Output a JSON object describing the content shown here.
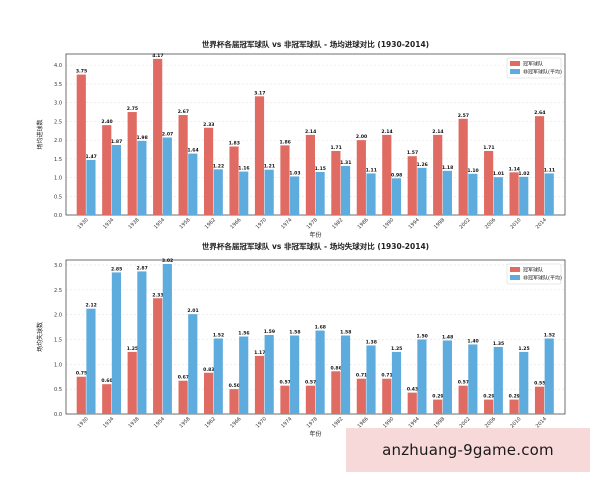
{
  "colors": {
    "champion": "#e06b62",
    "nonchampion": "#5dacdd"
  },
  "watermark": "anzhuang-9game.com",
  "chart_data": [
    {
      "type": "bar",
      "title": "世界杯各届冠军球队 vs 非冠军球队 - 场均进球对比 (1930-2014)",
      "xlabel": "年份",
      "ylabel": "场均进球数",
      "ylim": [
        0,
        4.3
      ],
      "yticks": [
        "0.0",
        "0.5",
        "1.0",
        "1.5",
        "2.0",
        "2.5",
        "3.0",
        "3.5",
        "4.0"
      ],
      "legend_position": "top-right",
      "categories": [
        "1930",
        "1934",
        "1938",
        "1954",
        "1958",
        "1962",
        "1966",
        "1970",
        "1974",
        "1978",
        "1982",
        "1986",
        "1990",
        "1994",
        "1998",
        "2002",
        "2006",
        "2010",
        "2014"
      ],
      "series": [
        {
          "name": "冠军球队",
          "values": [
            3.75,
            2.4,
            2.75,
            4.17,
            2.67,
            2.33,
            1.83,
            3.17,
            1.86,
            2.14,
            1.71,
            2.0,
            2.14,
            1.57,
            2.14,
            2.57,
            1.71,
            1.14,
            2.64
          ],
          "labels": [
            "3.75",
            "2.40",
            "2.75",
            "4.17",
            "2.67",
            "2.33",
            "1.83",
            "3.17",
            "1.86",
            "2.14",
            "1.71",
            "2.00",
            "2.14",
            "1.57",
            "2.14",
            "2.57",
            "1.71",
            "1.14",
            "2.64"
          ]
        },
        {
          "name": "非冠军球队(平均)",
          "values": [
            1.47,
            1.87,
            1.98,
            2.07,
            1.64,
            1.22,
            1.16,
            1.21,
            1.03,
            1.15,
            1.31,
            1.11,
            0.98,
            1.26,
            1.18,
            1.1,
            1.01,
            1.02,
            1.11
          ],
          "labels": [
            "1.47",
            "1.87",
            "1.98",
            "2.07",
            "1.64",
            "1.22",
            "1.16",
            "1.21",
            "1.03",
            "1.15",
            "1.31",
            "1.11",
            "0.98",
            "1.26",
            "1.18",
            "1.10",
            "1.01",
            "1.02",
            "1.11"
          ]
        }
      ]
    },
    {
      "type": "bar",
      "title": "世界杯各届冠军球队 vs 非冠军球队 - 场均失球对比 (1930-2014)",
      "xlabel": "年份",
      "ylabel": "场均失球数",
      "ylim": [
        0,
        3.1
      ],
      "yticks": [
        "0.0",
        "0.5",
        "1.0",
        "1.5",
        "2.0",
        "2.5",
        "3.0"
      ],
      "legend_position": "top-right",
      "categories": [
        "1930",
        "1934",
        "1938",
        "1954",
        "1958",
        "1962",
        "1966",
        "1970",
        "1974",
        "1978",
        "1982",
        "1986",
        "1990",
        "1994",
        "1998",
        "2002",
        "2006",
        "2010",
        "2014"
      ],
      "series": [
        {
          "name": "冠军球队",
          "values": [
            0.75,
            0.6,
            1.25,
            2.33,
            0.67,
            0.83,
            0.5,
            1.17,
            0.57,
            0.57,
            0.86,
            0.71,
            0.71,
            0.43,
            0.29,
            0.57,
            0.29,
            0.29,
            0.55
          ],
          "labels": [
            "0.75",
            "0.60",
            "1.25",
            "2.33",
            "0.67",
            "0.83",
            "0.50",
            "1.17",
            "0.57",
            "0.57",
            "0.86",
            "0.71",
            "0.71",
            "0.43",
            "0.29",
            "0.57",
            "0.29",
            "0.29",
            "0.55"
          ]
        },
        {
          "name": "非冠军球队(平均)",
          "values": [
            2.12,
            2.85,
            2.87,
            3.02,
            2.01,
            1.52,
            1.56,
            1.59,
            1.58,
            1.68,
            1.58,
            1.38,
            1.25,
            1.5,
            1.48,
            1.4,
            1.35,
            1.25,
            1.52
          ],
          "labels": [
            "2.12",
            "2.85",
            "2.87",
            "3.02",
            "2.01",
            "1.52",
            "1.56",
            "1.59",
            "1.58",
            "1.68",
            "1.58",
            "1.38",
            "1.25",
            "1.50",
            "1.48",
            "1.40",
            "1.35",
            "1.25",
            "1.52"
          ]
        }
      ]
    }
  ]
}
